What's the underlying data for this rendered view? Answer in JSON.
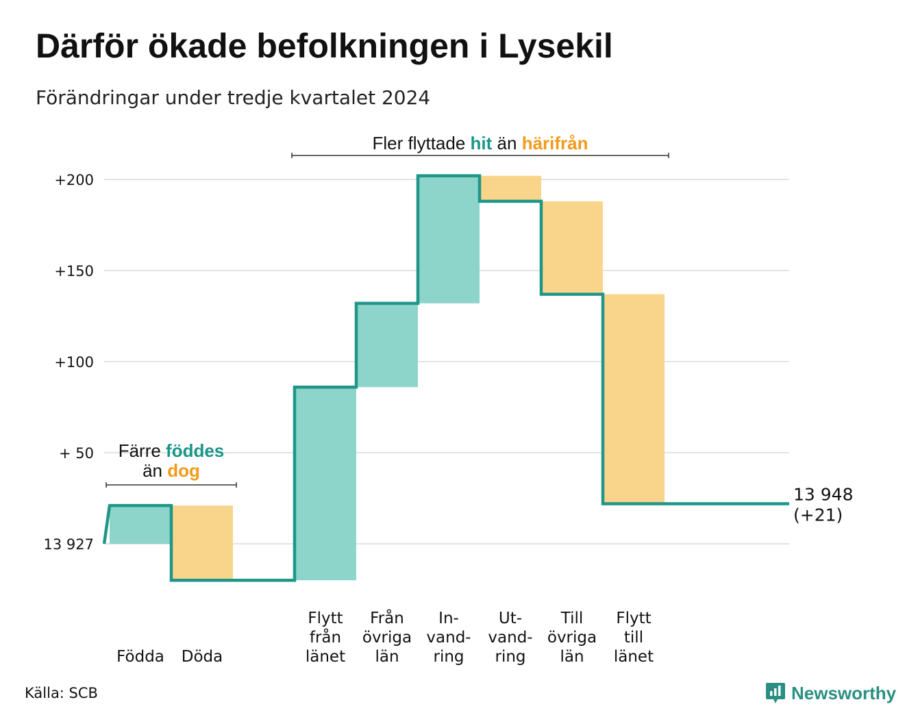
{
  "title": "Därför ökade befolkningen i Lysekil",
  "subtitle": "Förändringar under tredje kvartalet 2024",
  "source": "Källa: SCB",
  "brand": {
    "name": "Newsworthy",
    "icon": "newsworthy-logo-icon"
  },
  "colors": {
    "line": "#1f9688",
    "increase_fill": "#8dd4cb",
    "decrease_fill": "#f9d58c",
    "accent_teal": "#1a9688",
    "accent_orange": "#f29a1a",
    "grid": "#e3e3e3",
    "text": "#111111"
  },
  "chart_data": {
    "type": "waterfall",
    "start_value": 13927,
    "end_value": 13948,
    "y_tick_labels": [
      "13 927",
      "+ 50",
      "+100",
      "+150",
      "+200"
    ],
    "y_tick_values": [
      0,
      50,
      100,
      150,
      200
    ],
    "ylim": [
      -25,
      215
    ],
    "categories": [
      {
        "label": [
          "Födda"
        ],
        "value": 21
      },
      {
        "label": [
          "Döda"
        ],
        "value": -41
      },
      {
        "label": [],
        "value": 0,
        "spacer": true
      },
      {
        "label": [
          "Flytt",
          "från",
          "länet"
        ],
        "value": 106
      },
      {
        "label": [
          "Från",
          "övriga",
          "län"
        ],
        "value": 46
      },
      {
        "label": [
          "In-",
          "vand-",
          "ring"
        ],
        "value": 70
      },
      {
        "label": [
          "Ut-",
          "vand-",
          "ring"
        ],
        "value": -14
      },
      {
        "label": [
          "Till",
          "övriga",
          "län"
        ],
        "value": -51
      },
      {
        "label": [
          "Flytt",
          "till",
          "länet"
        ],
        "value": -115
      }
    ],
    "end_label": [
      "13 948",
      "(+21)"
    ],
    "annotations": [
      {
        "id": "natural",
        "line1": [
          {
            "text": "Färre ",
            "style": "plain"
          },
          {
            "text": "föddes",
            "style": "teal"
          }
        ],
        "line2": [
          {
            "text": "än ",
            "style": "plain"
          },
          {
            "text": "dog",
            "style": "orange"
          }
        ],
        "from_index": 0,
        "to_index": 1
      },
      {
        "id": "migration",
        "line1": [
          {
            "text": "Fler flyttade ",
            "style": "plain"
          },
          {
            "text": "hit",
            "style": "teal"
          },
          {
            "text": " än ",
            "style": "plain"
          },
          {
            "text": "härifrån",
            "style": "orange"
          }
        ],
        "line2": [],
        "from_index": 3,
        "to_index": 8
      }
    ],
    "grid": true,
    "legend": "none"
  }
}
